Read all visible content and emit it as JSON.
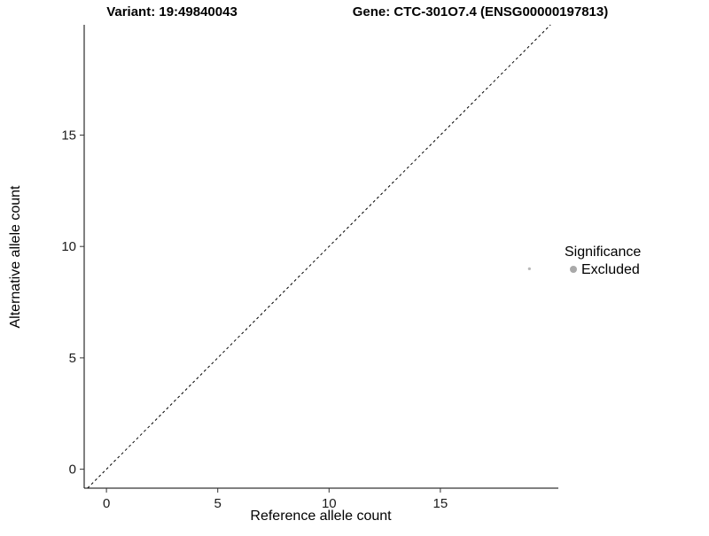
{
  "header": {
    "variant_title": "Variant: 19:49840043",
    "gene_title": "Gene: CTC-301O7.4 (ENSG00000197813)"
  },
  "chart_data": {
    "type": "scatter",
    "title": "Variant: 19:49840043 | Gene: CTC-301O7.4 (ENSG00000197813)",
    "xlabel": "Reference allele count",
    "ylabel": "Alternative allele count",
    "xlim": [
      -1.0,
      20.3
    ],
    "ylim": [
      -0.85,
      19.95
    ],
    "xticks": [
      0,
      5,
      10,
      15
    ],
    "yticks": [
      0,
      5,
      10,
      15
    ],
    "grid": false,
    "identity_line": {
      "type": "abline",
      "slope": 1,
      "intercept": 0,
      "style": "dashed",
      "color": "#000000"
    },
    "series": [
      {
        "name": "Excluded",
        "color": "#b8b8b8",
        "point_radius": 1.6,
        "points": [
          {
            "x": 19,
            "y": 9
          }
        ]
      }
    ],
    "legend": {
      "title": "Significance",
      "position": "right",
      "entries": [
        {
          "label": "Excluded",
          "color": "#a9a9a9"
        }
      ]
    }
  },
  "colors": {
    "axis": "#000000",
    "tick": "#333333",
    "text": "#000000",
    "background": "#ffffff"
  }
}
